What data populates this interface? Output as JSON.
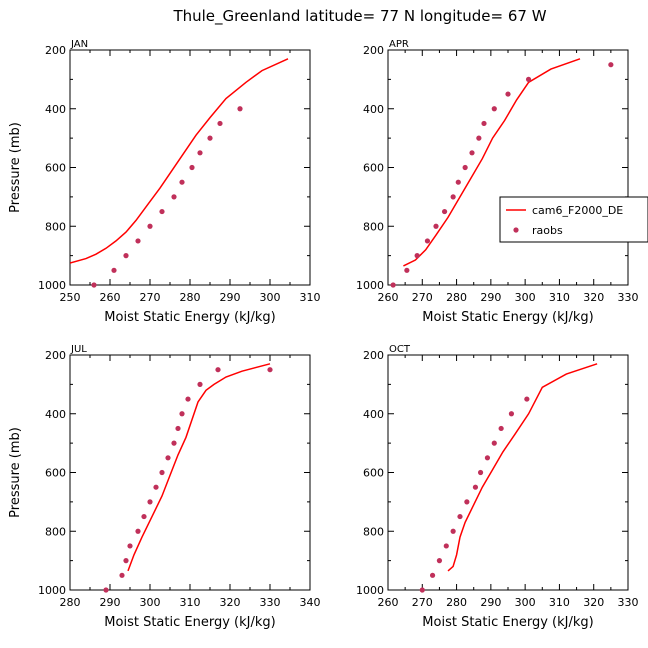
{
  "figure": {
    "title": "Thule_Greenland   latitude= 77 N longitude= 67 W"
  },
  "legend": {
    "entries": [
      {
        "label": "cam6_F2000_DE",
        "kind": "line",
        "color": "#ff0000"
      },
      {
        "label": "raobs",
        "kind": "marker",
        "color": "#c0305a"
      }
    ],
    "placement": "right of APR panel"
  },
  "colors": {
    "model_line": "#ff0000",
    "obs_marker": "#c0305a"
  },
  "chart_data": [
    {
      "type": "line",
      "panel": "JAN",
      "title": "JAN",
      "xlabel": "Moist Static Energy (kJ/kg)",
      "ylabel": "Pressure (mb)",
      "xlim": [
        250,
        310
      ],
      "ylim": [
        1000,
        200
      ],
      "xticks": [
        250,
        260,
        270,
        280,
        290,
        300,
        310
      ],
      "yticks": [
        200,
        400,
        600,
        800,
        1000
      ],
      "series": [
        {
          "name": "cam6_F2000_DE",
          "kind": "line",
          "x": [
            250,
            254,
            256.5,
            259,
            261.5,
            264,
            266.5,
            269.5,
            272.5,
            275.5,
            278.5,
            281.5,
            285,
            289,
            294,
            298,
            304.5
          ],
          "y": [
            925,
            910,
            895,
            875,
            850,
            820,
            780,
            725,
            670,
            610,
            550,
            490,
            430,
            365,
            310,
            270,
            230
          ]
        },
        {
          "name": "raobs",
          "kind": "marker",
          "x": [
            256,
            261,
            264,
            267,
            270,
            273,
            276,
            278,
            280.5,
            282.5,
            285,
            287.5,
            292.5
          ],
          "y": [
            1000,
            950,
            900,
            850,
            800,
            750,
            700,
            650,
            600,
            550,
            500,
            450,
            400
          ]
        }
      ]
    },
    {
      "type": "line",
      "panel": "APR",
      "title": "APR",
      "xlabel": "Moist Static Energy (kJ/kg)",
      "ylabel": "",
      "xlim": [
        260,
        330
      ],
      "ylim": [
        1000,
        200
      ],
      "xticks": [
        260,
        270,
        280,
        290,
        300,
        310,
        320,
        330
      ],
      "yticks": [
        200,
        400,
        600,
        800,
        1000
      ],
      "series": [
        {
          "name": "cam6_F2000_DE",
          "kind": "line",
          "x": [
            264.5,
            268,
            271,
            274,
            277.5,
            280.5,
            284,
            287.5,
            290.5,
            294,
            297.5,
            301,
            307.5,
            316
          ],
          "y": [
            935,
            915,
            880,
            830,
            770,
            710,
            640,
            570,
            500,
            440,
            370,
            310,
            265,
            230
          ]
        },
        {
          "name": "raobs",
          "kind": "marker",
          "x": [
            261.5,
            265.5,
            268.5,
            271.5,
            274,
            276.5,
            279,
            280.5,
            282.5,
            284.5,
            286.5,
            288,
            291,
            295,
            301,
            325
          ],
          "y": [
            1000,
            950,
            900,
            850,
            800,
            750,
            700,
            650,
            600,
            550,
            500,
            450,
            400,
            350,
            300,
            250
          ]
        }
      ]
    },
    {
      "type": "line",
      "panel": "JUL",
      "title": "JUL",
      "xlabel": "Moist Static Energy (kJ/kg)",
      "ylabel": "Pressure (mb)",
      "xlim": [
        280,
        340
      ],
      "ylim": [
        1000,
        200
      ],
      "xticks": [
        280,
        290,
        300,
        310,
        320,
        330,
        340
      ],
      "yticks": [
        200,
        400,
        600,
        800,
        1000
      ],
      "series": [
        {
          "name": "cam6_F2000_DE",
          "kind": "line",
          "x": [
            294.5,
            296,
            298,
            300.5,
            303,
            305,
            307,
            309,
            310.5,
            312,
            314,
            316,
            319,
            323,
            330
          ],
          "y": [
            935,
            880,
            820,
            750,
            680,
            610,
            540,
            480,
            420,
            360,
            320,
            300,
            275,
            255,
            230
          ]
        },
        {
          "name": "raobs",
          "kind": "marker",
          "x": [
            289,
            293,
            294,
            295,
            297,
            298.5,
            300,
            301.5,
            303,
            304.5,
            306,
            307,
            308,
            309.5,
            312.5,
            317,
            330
          ],
          "y": [
            1000,
            950,
            900,
            850,
            800,
            750,
            700,
            650,
            600,
            550,
            500,
            450,
            400,
            350,
            300,
            250,
            250
          ]
        }
      ]
    },
    {
      "type": "line",
      "panel": "OCT",
      "title": "OCT",
      "xlabel": "Moist Static Energy (kJ/kg)",
      "ylabel": "",
      "xlim": [
        260,
        330
      ],
      "ylim": [
        1000,
        200
      ],
      "xticks": [
        260,
        270,
        280,
        290,
        300,
        310,
        320,
        330
      ],
      "yticks": [
        200,
        400,
        600,
        800,
        1000
      ],
      "series": [
        {
          "name": "cam6_F2000_DE",
          "kind": "line",
          "x": [
            277.5,
            279,
            280,
            281,
            282.5,
            285,
            287.5,
            290.5,
            293.5,
            297,
            301,
            305,
            312,
            321
          ],
          "y": [
            935,
            920,
            880,
            820,
            770,
            710,
            650,
            590,
            530,
            470,
            400,
            310,
            265,
            230
          ]
        },
        {
          "name": "raobs",
          "kind": "marker",
          "x": [
            270,
            273,
            275,
            277,
            279,
            281,
            283,
            285.5,
            287,
            289,
            291,
            293,
            296,
            300.5
          ],
          "y": [
            1000,
            950,
            900,
            850,
            800,
            750,
            700,
            650,
            600,
            550,
            500,
            450,
            400,
            350
          ]
        }
      ]
    }
  ]
}
